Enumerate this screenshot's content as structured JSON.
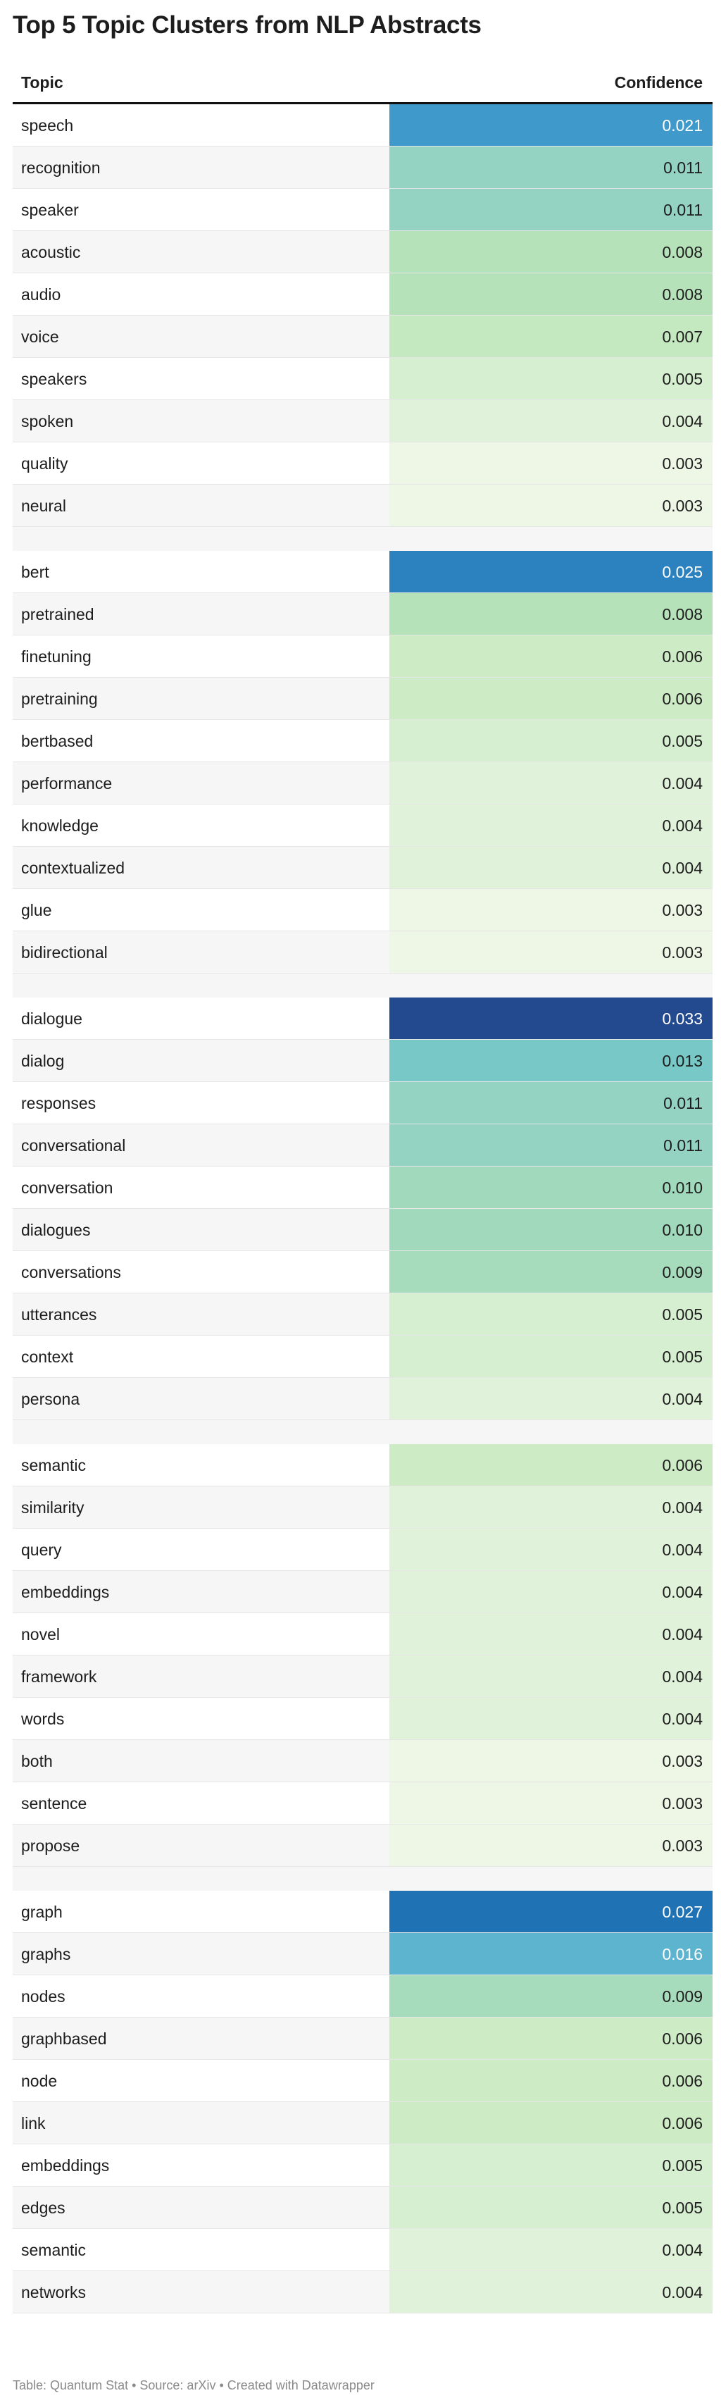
{
  "title": "Top 5 Topic Clusters from NLP Abstracts",
  "footer": "Table: Quantum Stat • Source: arXiv • Created with Datawrapper",
  "chart_data": {
    "type": "table",
    "columns": [
      "Topic",
      "Confidence"
    ],
    "clusters": [
      {
        "rows": [
          {
            "topic": "speech",
            "value": 0.021
          },
          {
            "topic": "recognition",
            "value": 0.011
          },
          {
            "topic": "speaker",
            "value": 0.011
          },
          {
            "topic": "acoustic",
            "value": 0.008
          },
          {
            "topic": "audio",
            "value": 0.008
          },
          {
            "topic": "voice",
            "value": 0.007
          },
          {
            "topic": "speakers",
            "value": 0.005
          },
          {
            "topic": "spoken",
            "value": 0.004
          },
          {
            "topic": "quality",
            "value": 0.003
          },
          {
            "topic": "neural",
            "value": 0.003
          }
        ]
      },
      {
        "rows": [
          {
            "topic": "bert",
            "value": 0.025
          },
          {
            "topic": "pretrained",
            "value": 0.008
          },
          {
            "topic": "finetuning",
            "value": 0.006
          },
          {
            "topic": "pretraining",
            "value": 0.006
          },
          {
            "topic": "bertbased",
            "value": 0.005
          },
          {
            "topic": "performance",
            "value": 0.004
          },
          {
            "topic": "knowledge",
            "value": 0.004
          },
          {
            "topic": "contextualized",
            "value": 0.004
          },
          {
            "topic": "glue",
            "value": 0.003
          },
          {
            "topic": "bidirectional",
            "value": 0.003
          }
        ]
      },
      {
        "rows": [
          {
            "topic": "dialogue",
            "value": 0.033
          },
          {
            "topic": "dialog",
            "value": 0.013
          },
          {
            "topic": "responses",
            "value": 0.011
          },
          {
            "topic": "conversational",
            "value": 0.011
          },
          {
            "topic": "conversation",
            "value": 0.01
          },
          {
            "topic": "dialogues",
            "value": 0.01
          },
          {
            "topic": "conversations",
            "value": 0.009
          },
          {
            "topic": "utterances",
            "value": 0.005
          },
          {
            "topic": "context",
            "value": 0.005
          },
          {
            "topic": "persona",
            "value": 0.004
          }
        ]
      },
      {
        "rows": [
          {
            "topic": "semantic",
            "value": 0.006
          },
          {
            "topic": "similarity",
            "value": 0.004
          },
          {
            "topic": "query",
            "value": 0.004
          },
          {
            "topic": "embeddings",
            "value": 0.004
          },
          {
            "topic": "novel",
            "value": 0.004
          },
          {
            "topic": "framework",
            "value": 0.004
          },
          {
            "topic": "words",
            "value": 0.004
          },
          {
            "topic": "both",
            "value": 0.003
          },
          {
            "topic": "sentence",
            "value": 0.003
          },
          {
            "topic": "propose",
            "value": 0.003
          }
        ]
      },
      {
        "rows": [
          {
            "topic": "graph",
            "value": 0.027
          },
          {
            "topic": "graphs",
            "value": 0.016
          },
          {
            "topic": "nodes",
            "value": 0.009
          },
          {
            "topic": "graphbased",
            "value": 0.006
          },
          {
            "topic": "node",
            "value": 0.006
          },
          {
            "topic": "link",
            "value": 0.006
          },
          {
            "topic": "embeddings",
            "value": 0.005
          },
          {
            "topic": "edges",
            "value": 0.005
          },
          {
            "topic": "semantic",
            "value": 0.004
          },
          {
            "topic": "networks",
            "value": 0.004
          }
        ]
      }
    ],
    "color_scale": [
      {
        "value": 0.003,
        "color": "#eef7e6"
      },
      {
        "value": 0.004,
        "color": "#e0f2d9"
      },
      {
        "value": 0.005,
        "color": "#d6efd0"
      },
      {
        "value": 0.006,
        "color": "#cdebc5"
      },
      {
        "value": 0.007,
        "color": "#c4e8bf"
      },
      {
        "value": 0.008,
        "color": "#b5e2b8"
      },
      {
        "value": 0.009,
        "color": "#a6dbbb"
      },
      {
        "value": 0.01,
        "color": "#a0d9bc"
      },
      {
        "value": 0.011,
        "color": "#94d3c1"
      },
      {
        "value": 0.013,
        "color": "#77c8c6"
      },
      {
        "value": 0.016,
        "color": "#5cb4cf"
      },
      {
        "value": 0.021,
        "color": "#3f9acb"
      },
      {
        "value": 0.025,
        "color": "#2b82be"
      },
      {
        "value": 0.027,
        "color": "#1f72b3"
      },
      {
        "value": 0.033,
        "color": "#234a8e"
      }
    ]
  }
}
